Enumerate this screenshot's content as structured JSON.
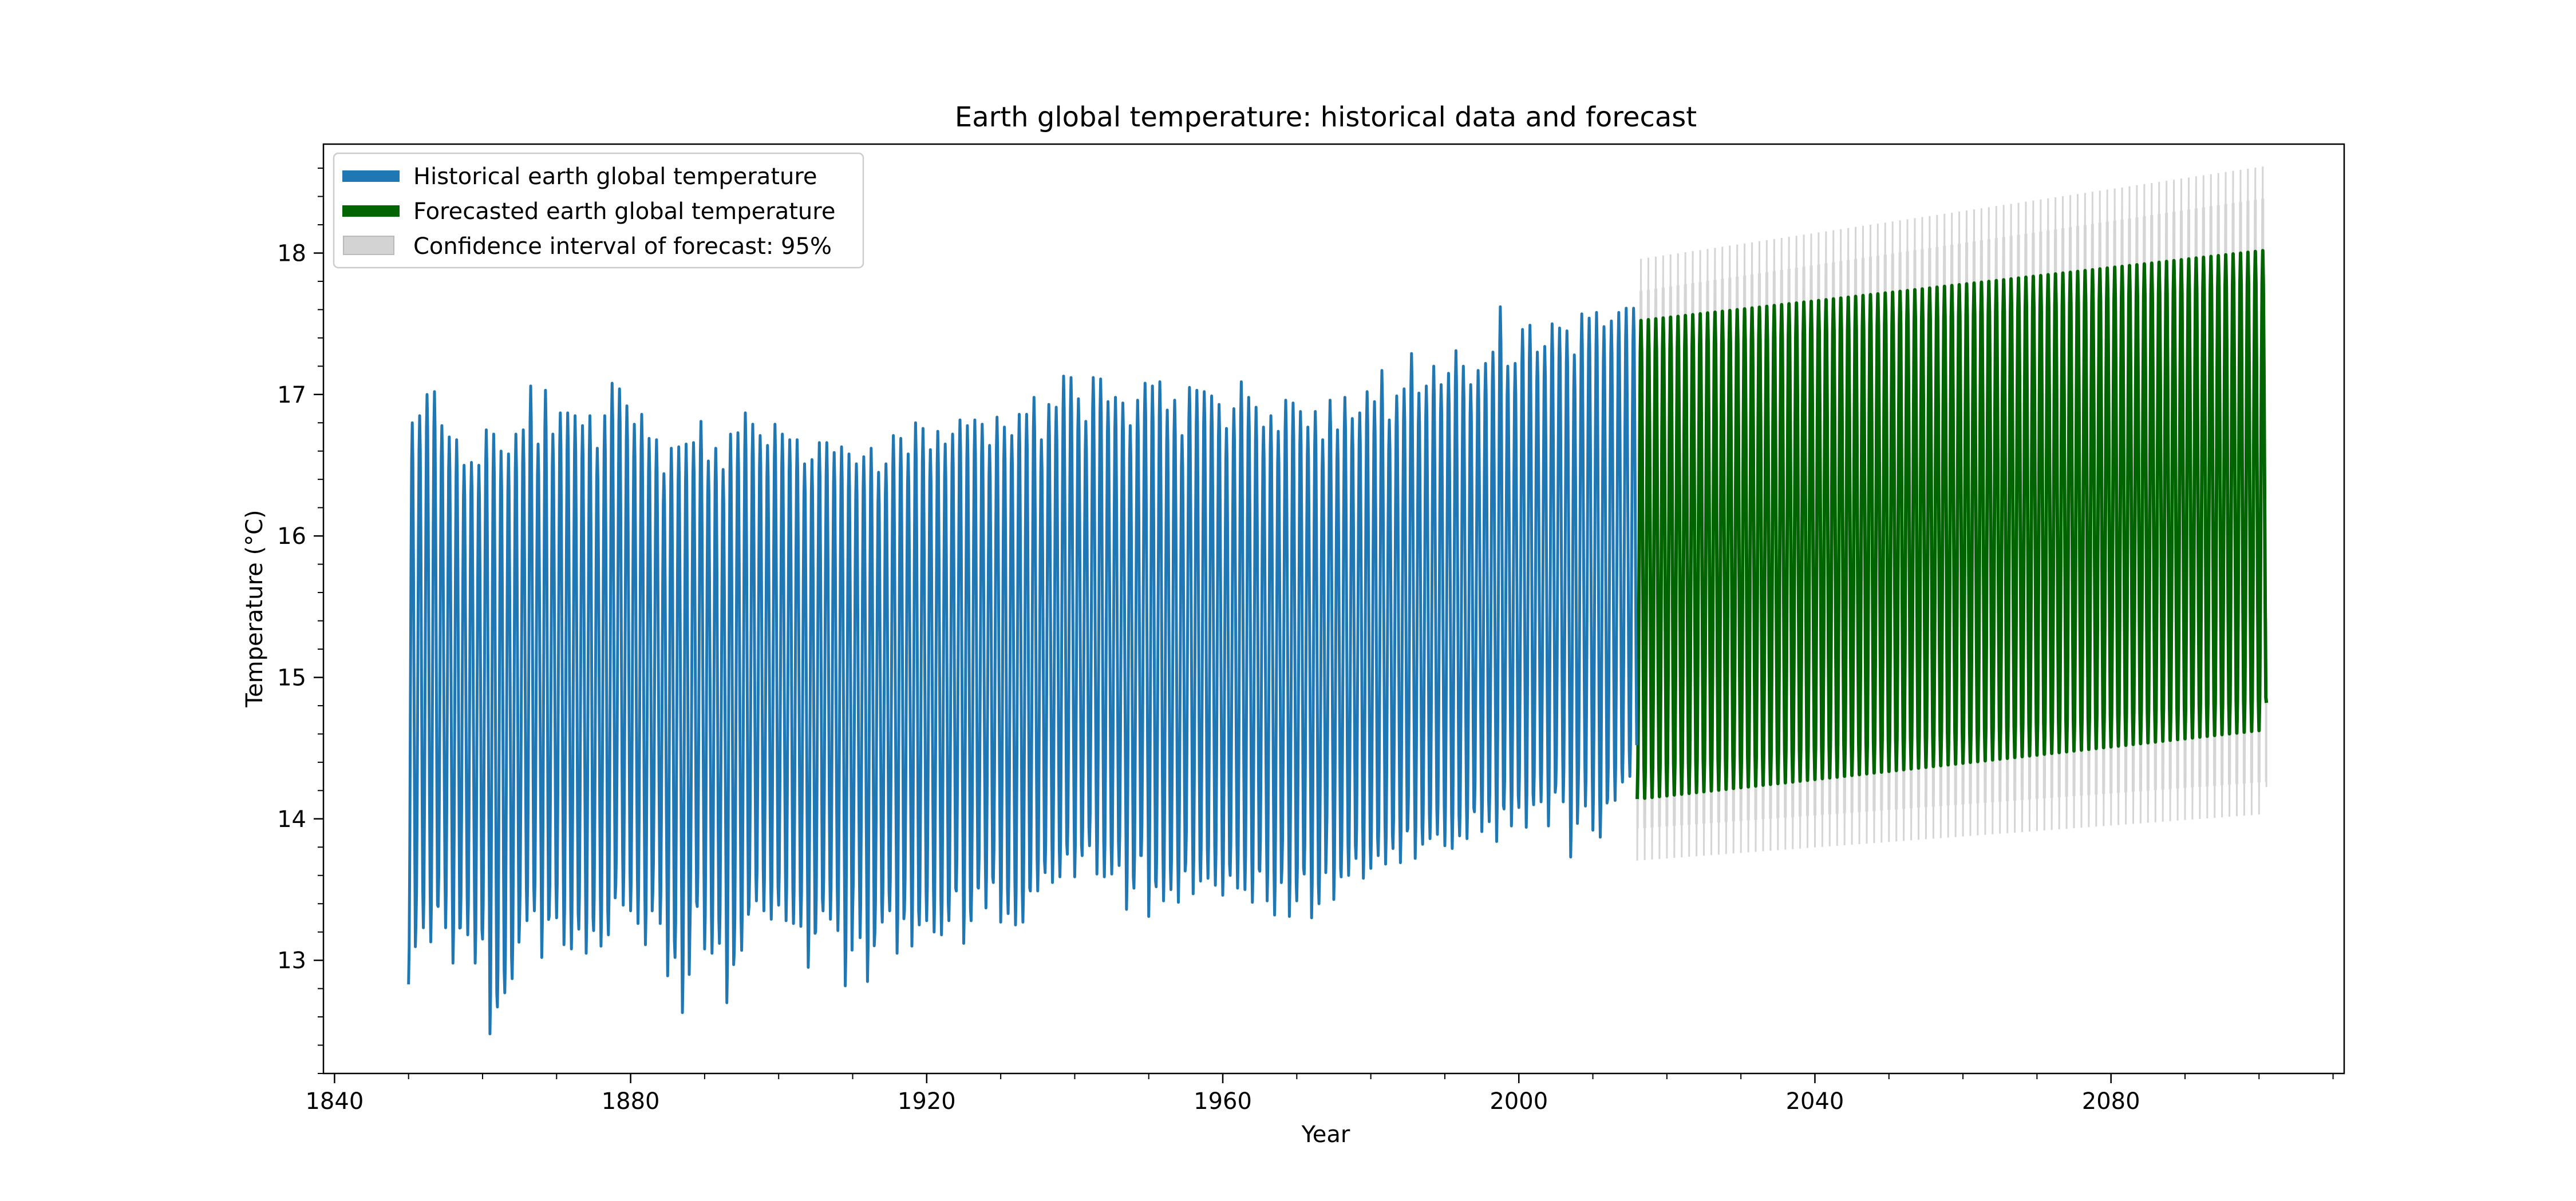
{
  "chart_data": {
    "type": "line",
    "title": "Earth global temperature: historical data and forecast",
    "xlabel": "Year",
    "ylabel": "Temperature (°C)",
    "xlim": [
      1838.5,
      2111.5
    ],
    "ylim": [
      12.2,
      18.77
    ],
    "xticks": [
      1840,
      1880,
      1920,
      1960,
      2000,
      2040,
      2080
    ],
    "xtick_labels": [
      "1840",
      "1880",
      "1920",
      "1960",
      "2000",
      "2040",
      "2080"
    ],
    "xminor_step": 10,
    "yticks": [
      13,
      14,
      15,
      16,
      17,
      18
    ],
    "ytick_labels": [
      "13",
      "14",
      "15",
      "16",
      "17",
      "18"
    ],
    "yminor_step": 0.2,
    "grid": false,
    "legend_position": "top-left",
    "colors": {
      "historical": "#1f77b4",
      "forecast": "#006400",
      "confidence": "#d3d3d3"
    },
    "series": [
      {
        "name": "Historical earth global temperature",
        "kind": "monthly-seasonal",
        "x_start": 1850.0,
        "x_end": 2015.92,
        "annual_peak_values": [
          16.8,
          16.85,
          17.0,
          17.02,
          16.78,
          16.7,
          16.68,
          16.5,
          16.52,
          16.5,
          16.75,
          16.72,
          16.6,
          16.58,
          16.72,
          16.75,
          17.06,
          16.65,
          17.03,
          16.72,
          16.87,
          16.87,
          16.85,
          16.78,
          16.85,
          16.62,
          16.85,
          17.08,
          17.04,
          16.92,
          16.79,
          16.86,
          16.69,
          16.68,
          16.44,
          16.62,
          16.63,
          16.65,
          16.66,
          16.81,
          16.53,
          16.62,
          16.47,
          16.72,
          16.73,
          16.87,
          16.79,
          16.71,
          16.64,
          16.79,
          16.72,
          16.68,
          16.68,
          16.51,
          16.54,
          16.66,
          16.66,
          16.59,
          16.63,
          16.58,
          16.51,
          16.56,
          16.62,
          16.45,
          16.51,
          16.71,
          16.69,
          16.58,
          16.8,
          16.76,
          16.61,
          16.74,
          16.65,
          16.72,
          16.82,
          16.78,
          16.82,
          16.79,
          16.64,
          16.84,
          16.77,
          16.71,
          16.86,
          16.86,
          16.98,
          16.68,
          16.93,
          16.91,
          17.13,
          17.12,
          16.97,
          16.81,
          17.12,
          17.11,
          16.95,
          16.98,
          16.94,
          16.78,
          16.96,
          17.08,
          17.06,
          17.09,
          16.89,
          16.96,
          16.71,
          17.05,
          17.03,
          17.02,
          16.99,
          16.93,
          16.76,
          16.9,
          17.09,
          16.98,
          16.91,
          16.77,
          16.85,
          16.74,
          16.96,
          16.94,
          16.88,
          16.77,
          16.88,
          16.68,
          16.96,
          16.75,
          16.98,
          16.83,
          16.87,
          17.02,
          16.95,
          17.17,
          16.82,
          16.99,
          17.04,
          17.29,
          17.01,
          17.06,
          17.2,
          17.07,
          17.15,
          17.31,
          17.2,
          17.07,
          17.17,
          17.22,
          17.3,
          17.62,
          17.2,
          17.22,
          17.46,
          17.49,
          17.3,
          17.34,
          17.5,
          17.47,
          17.45,
          17.28,
          17.57,
          17.54,
          17.58,
          17.48,
          17.52,
          17.58,
          17.61,
          17.61
        ],
        "annual_trough_values": [
          12.83,
          13.25,
          13.23,
          13.13,
          13.38,
          13.23,
          12.98,
          13.23,
          13.18,
          12.98,
          13.15,
          12.48,
          12.67,
          12.77,
          12.87,
          13.28,
          13.28,
          13.35,
          13.02,
          13.31,
          13.3,
          13.11,
          13.08,
          13.22,
          13.05,
          13.21,
          13.1,
          13.18,
          13.54,
          13.39,
          13.35,
          13.26,
          13.11,
          13.48,
          13.26,
          12.89,
          13.02,
          12.63,
          13.18,
          13.38,
          13.08,
          13.05,
          13.12,
          12.7,
          13.05,
          13.07,
          13.38,
          13.42,
          13.35,
          13.29,
          13.39,
          13.28,
          13.26,
          13.24,
          12.95,
          13.2,
          13.35,
          13.29,
          13.21,
          12.82,
          13.35,
          13.16,
          12.85,
          13.19,
          13.27,
          13.35,
          13.05,
          13.35,
          13.1,
          13.25,
          13.28,
          13.2,
          13.18,
          13.28,
          13.49,
          13.12,
          13.28,
          13.51,
          13.37,
          13.55,
          13.27,
          13.33,
          13.25,
          13.27,
          13.49,
          13.49,
          13.62,
          13.55,
          13.59,
          13.75,
          13.59,
          13.74,
          13.81,
          13.61,
          13.59,
          13.61,
          13.67,
          13.36,
          13.51,
          13.74,
          13.31,
          13.52,
          13.42,
          13.5,
          13.41,
          13.69,
          13.47,
          13.56,
          13.58,
          13.53,
          13.46,
          13.6,
          13.51,
          13.5,
          13.41,
          13.63,
          13.42,
          13.32,
          13.65,
          13.31,
          13.42,
          13.61,
          13.3,
          13.4,
          13.81,
          13.43,
          13.59,
          13.6,
          13.72,
          13.58,
          13.65,
          13.74,
          13.68,
          13.79,
          13.69,
          13.93,
          13.72,
          13.82,
          13.86,
          13.89,
          13.81,
          13.79,
          13.88,
          13.86,
          14.05,
          13.91,
          13.98,
          13.84,
          14.07,
          13.95,
          14.08,
          13.94,
          14.1,
          14.12,
          13.95,
          14.24,
          14.12,
          13.73,
          14.15,
          14.09,
          13.92,
          13.87,
          14.14,
          14.13,
          14.26,
          14.3
        ]
      },
      {
        "name": "Forecasted earth global temperature",
        "kind": "monthly-seasonal",
        "x_start": 2016.0,
        "x_end": 2101.0,
        "peak_start": 17.52,
        "peak_end": 18.02,
        "trough_start": 14.14,
        "trough_end": 14.63,
        "end_value": 14.82
      },
      {
        "name": "Confidence interval of forecast: 95%",
        "kind": "band",
        "x_start": 2016.0,
        "x_end": 2101.0,
        "upper_start": 17.82,
        "upper_end": 18.48,
        "lower_start": 13.84,
        "lower_end": 14.17
      }
    ]
  }
}
